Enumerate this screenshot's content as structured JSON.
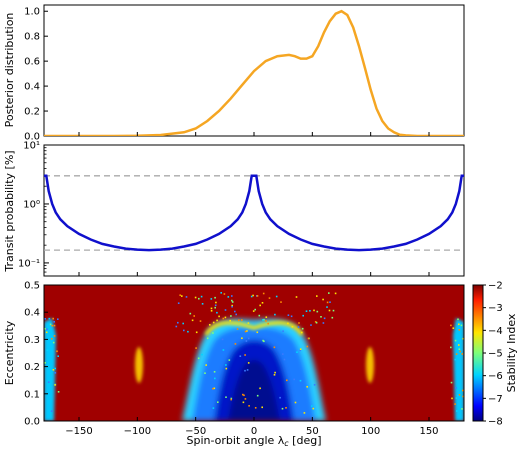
{
  "chart_data": [
    {
      "type": "line",
      "ylabel": "Posterior distribution",
      "xlim": [
        -180,
        180
      ],
      "ylim": [
        0,
        1.05
      ],
      "yticks": [
        "0.0",
        "0.2",
        "0.4",
        "0.6",
        "0.8",
        "1.0"
      ],
      "series_color": "#f5a623",
      "series": [
        {
          "x": [
            -180,
            -120,
            -100,
            -80,
            -60,
            -50,
            -40,
            -30,
            -20,
            -10,
            0,
            10,
            20,
            30,
            35,
            40,
            45,
            50,
            55,
            60,
            65,
            70,
            75,
            80,
            85,
            90,
            95,
            100,
            105,
            110,
            115,
            120,
            125,
            130,
            140,
            150,
            160,
            180
          ],
          "values": [
            0,
            0,
            0.002,
            0.008,
            0.03,
            0.06,
            0.12,
            0.2,
            0.3,
            0.41,
            0.52,
            0.6,
            0.64,
            0.65,
            0.64,
            0.62,
            0.62,
            0.64,
            0.72,
            0.83,
            0.92,
            0.98,
            1.0,
            0.97,
            0.87,
            0.72,
            0.55,
            0.37,
            0.22,
            0.12,
            0.06,
            0.03,
            0.01,
            0.005,
            0,
            0,
            0,
            0
          ]
        }
      ]
    },
    {
      "type": "line",
      "ylabel": "Transit probability [%]",
      "yscale": "log",
      "xlim": [
        -180,
        180
      ],
      "ylim": [
        0.06,
        10
      ],
      "yticks": [
        "10⁻¹",
        "10⁰",
        "10¹"
      ],
      "series_color": "#1010cc",
      "reference_color": "#aaaaaa",
      "reference_lines": [
        3.0,
        0.165
      ],
      "series": [
        {
          "x": [
            -180,
            -178,
            -176,
            -173,
            -170,
            -166,
            -160,
            -150,
            -140,
            -130,
            -120,
            -110,
            -100,
            -90,
            -80,
            -70,
            -60,
            -50,
            -40,
            -30,
            -20,
            -14,
            -10,
            -7,
            -4,
            -2,
            0,
            2,
            4,
            7,
            10,
            14,
            20,
            30,
            40,
            50,
            60,
            70,
            80,
            90,
            100,
            110,
            120,
            130,
            140,
            150,
            160,
            166,
            170,
            173,
            176,
            178,
            180
          ],
          "values": [
            3.0,
            3.0,
            1.65,
            1.0,
            0.72,
            0.55,
            0.42,
            0.31,
            0.25,
            0.21,
            0.19,
            0.175,
            0.168,
            0.165,
            0.168,
            0.175,
            0.19,
            0.21,
            0.25,
            0.31,
            0.42,
            0.55,
            0.72,
            1.0,
            1.65,
            3.0,
            3.0,
            3.0,
            1.65,
            1.0,
            0.72,
            0.55,
            0.42,
            0.31,
            0.25,
            0.21,
            0.19,
            0.175,
            0.168,
            0.165,
            0.168,
            0.175,
            0.19,
            0.21,
            0.25,
            0.31,
            0.42,
            0.55,
            0.72,
            1.0,
            1.65,
            3.0,
            3.0
          ]
        }
      ]
    },
    {
      "type": "heatmap",
      "xlabel": "Spin-orbit angle λ_c [deg]",
      "ylabel": "Eccentricity",
      "xlim": [
        -180,
        180
      ],
      "ylim": [
        0,
        0.5
      ],
      "xticks": [
        "−150",
        "−100",
        "−50",
        "0",
        "50",
        "100",
        "150"
      ],
      "yticks": [
        "0.0",
        "0.1",
        "0.2",
        "0.3",
        "0.4",
        "0.5"
      ],
      "colorbar": {
        "label": "Stability Index",
        "range": [
          -8,
          -2
        ],
        "ticks": [
          "−2",
          "−3",
          "−4",
          "−5",
          "−6",
          "−7",
          "−8"
        ],
        "colormap": "jet"
      },
      "background_value": -2
    }
  ]
}
